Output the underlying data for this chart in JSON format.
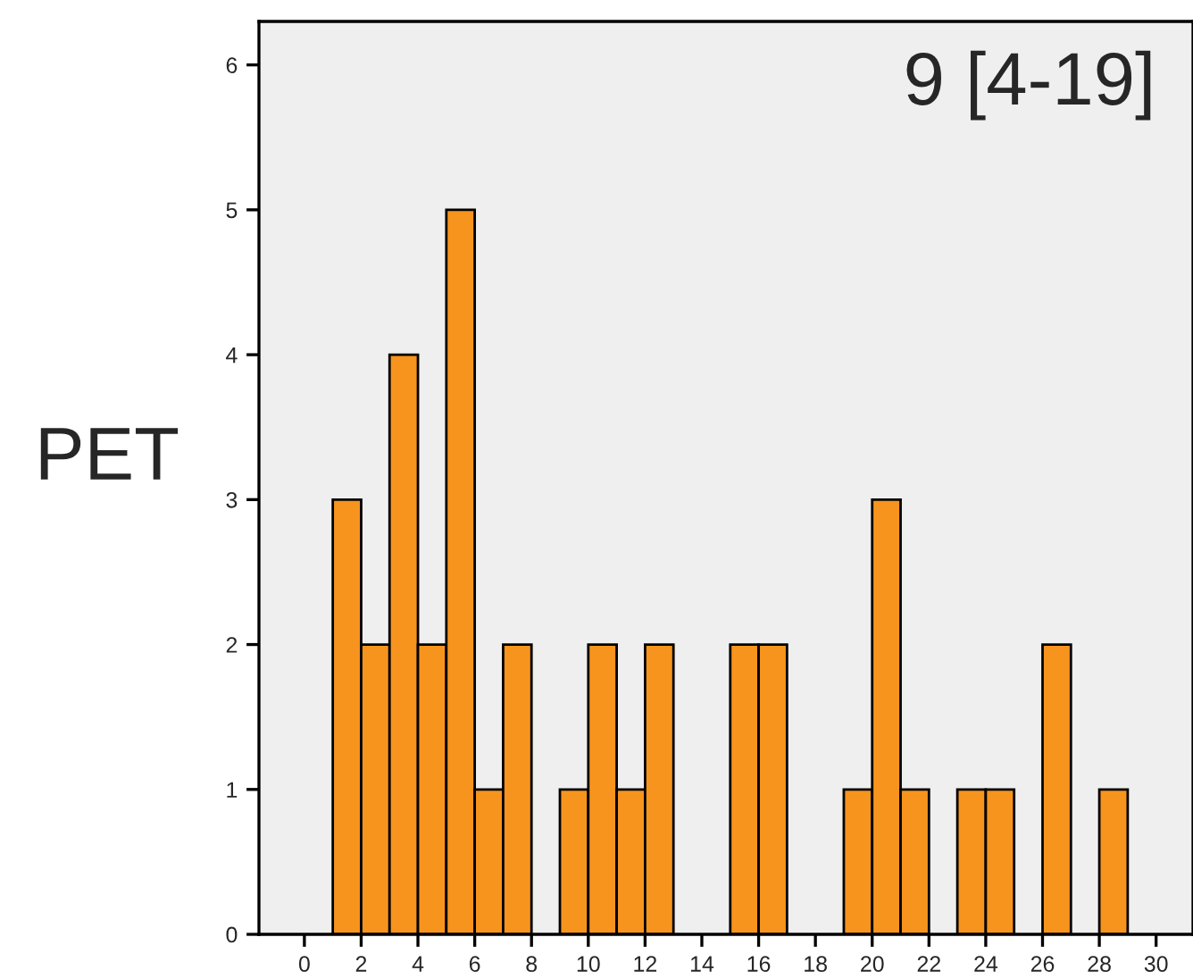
{
  "chart_data": {
    "type": "histogram",
    "ylabel": "PET",
    "annotations": [
      "9 [4-19]"
    ],
    "color": "#f7941d",
    "bins": [
      1,
      2,
      3,
      4,
      5,
      6,
      7,
      8,
      9,
      10,
      11,
      12,
      13,
      14,
      15,
      16,
      17,
      18,
      19,
      20,
      21,
      22,
      23,
      24,
      25,
      26,
      27,
      28,
      29
    ],
    "values": [
      3,
      2,
      4,
      2,
      5,
      1,
      2,
      0,
      1,
      2,
      1,
      2,
      0,
      0,
      2,
      2,
      0,
      0,
      1,
      3,
      1,
      0,
      1,
      1,
      0,
      2,
      0,
      1
    ],
    "xlim": [
      -1.6,
      31.3
    ],
    "xticks": [
      0,
      2,
      4,
      6,
      8,
      10,
      12,
      14,
      16,
      18,
      20,
      22,
      24,
      26,
      28,
      30
    ],
    "ylim": [
      0,
      6.3
    ],
    "yticks": [
      0,
      1,
      2,
      3,
      4,
      5,
      6
    ],
    "grid": false,
    "legend": false
  }
}
